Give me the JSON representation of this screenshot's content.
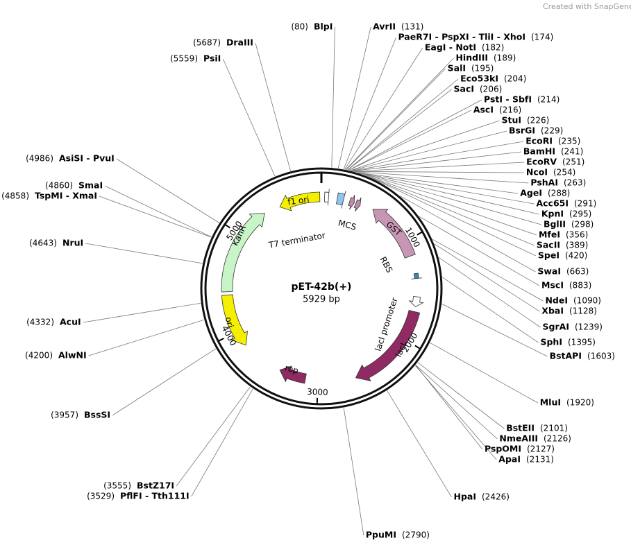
{
  "watermark": "Created with SnapGene®",
  "plasmid": {
    "name": "pET-42b(+)",
    "length": {
      "value": 5929,
      "label": "5929 bp"
    }
  },
  "ticks": [
    1000,
    2000,
    3000,
    4000,
    5000
  ],
  "features": [
    {
      "label": "f1 ori"
    },
    {
      "label": "T7 terminator"
    },
    {
      "label": "MCS"
    },
    {
      "label": "GST"
    },
    {
      "label": "RBS"
    },
    {
      "label": "lacI promoter"
    },
    {
      "label": "lacI"
    },
    {
      "label": "rop"
    },
    {
      "label": "ori"
    },
    {
      "label": "KanR"
    }
  ],
  "sites": [
    {
      "name": "BlpI",
      "position": {
        "value": 80,
        "label": "(80)"
      }
    },
    {
      "name": "AvrII",
      "position": {
        "value": 131,
        "label": "(131)"
      }
    },
    {
      "name": "PaeR7I - PspXI - TliI - XhoI",
      "position": {
        "value": 174,
        "label": "(174)"
      }
    },
    {
      "name": "EagI - NotI",
      "position": {
        "value": 182,
        "label": "(182)"
      }
    },
    {
      "name": "HindIII",
      "position": {
        "value": 189,
        "label": "(189)"
      }
    },
    {
      "name": "SalI",
      "position": {
        "value": 195,
        "label": "(195)"
      }
    },
    {
      "name": "Eco53kI",
      "position": {
        "value": 204,
        "label": "(204)"
      }
    },
    {
      "name": "SacI",
      "position": {
        "value": 206,
        "label": "(206)"
      }
    },
    {
      "name": "PstI - SbfI",
      "position": {
        "value": 214,
        "label": "(214)"
      }
    },
    {
      "name": "AscI",
      "position": {
        "value": 216,
        "label": "(216)"
      }
    },
    {
      "name": "StuI",
      "position": {
        "value": 226,
        "label": "(226)"
      }
    },
    {
      "name": "BsrGI",
      "position": {
        "value": 229,
        "label": "(229)"
      }
    },
    {
      "name": "EcoRI",
      "position": {
        "value": 235,
        "label": "(235)"
      }
    },
    {
      "name": "BamHI",
      "position": {
        "value": 241,
        "label": "(241)"
      }
    },
    {
      "name": "EcoRV",
      "position": {
        "value": 251,
        "label": "(251)"
      }
    },
    {
      "name": "NcoI",
      "position": {
        "value": 254,
        "label": "(254)"
      }
    },
    {
      "name": "PshAI",
      "position": {
        "value": 263,
        "label": "(263)"
      }
    },
    {
      "name": "AgeI",
      "position": {
        "value": 288,
        "label": "(288)"
      }
    },
    {
      "name": "Acc65I",
      "position": {
        "value": 291,
        "label": "(291)"
      }
    },
    {
      "name": "KpnI",
      "position": {
        "value": 295,
        "label": "(295)"
      }
    },
    {
      "name": "BglII",
      "position": {
        "value": 298,
        "label": "(298)"
      }
    },
    {
      "name": "MfeI",
      "position": {
        "value": 356,
        "label": "(356)"
      }
    },
    {
      "name": "SacII",
      "position": {
        "value": 389,
        "label": "(389)"
      }
    },
    {
      "name": "SpeI",
      "position": {
        "value": 420,
        "label": "(420)"
      }
    },
    {
      "name": "SwaI",
      "position": {
        "value": 663,
        "label": "(663)"
      }
    },
    {
      "name": "MscI",
      "position": {
        "value": 883,
        "label": "(883)"
      }
    },
    {
      "name": "NdeI",
      "position": {
        "value": 1090,
        "label": "(1090)"
      }
    },
    {
      "name": "XbaI",
      "position": {
        "value": 1128,
        "label": "(1128)"
      }
    },
    {
      "name": "SgrAI",
      "position": {
        "value": 1239,
        "label": "(1239)"
      }
    },
    {
      "name": "SphI",
      "position": {
        "value": 1395,
        "label": "(1395)"
      }
    },
    {
      "name": "BstAPI",
      "position": {
        "value": 1603,
        "label": "(1603)"
      }
    },
    {
      "name": "MluI",
      "position": {
        "value": 1920,
        "label": "(1920)"
      }
    },
    {
      "name": "BstEII",
      "position": {
        "value": 2101,
        "label": "(2101)"
      }
    },
    {
      "name": "NmeAIII",
      "position": {
        "value": 2126,
        "label": "(2126)"
      }
    },
    {
      "name": "PspOMI",
      "position": {
        "value": 2127,
        "label": "(2127)"
      }
    },
    {
      "name": "ApaI",
      "position": {
        "value": 2131,
        "label": "(2131)"
      }
    },
    {
      "name": "HpaI",
      "position": {
        "value": 2426,
        "label": "(2426)"
      }
    },
    {
      "name": "PpuMI",
      "position": {
        "value": 2790,
        "label": "(2790)"
      }
    },
    {
      "name": "PflFI - Tth111I",
      "position": {
        "value": 3529,
        "label": "(3529)"
      }
    },
    {
      "name": "BstZ17I",
      "position": {
        "value": 3555,
        "label": "(3555)"
      }
    },
    {
      "name": "BssSI",
      "position": {
        "value": 3957,
        "label": "(3957)"
      }
    },
    {
      "name": "AlwNI",
      "position": {
        "value": 4200,
        "label": "(4200)"
      }
    },
    {
      "name": "AcuI",
      "position": {
        "value": 4332,
        "label": "(4332)"
      }
    },
    {
      "name": "NruI",
      "position": {
        "value": 4643,
        "label": "(4643)"
      }
    },
    {
      "name": "TspMI - XmaI",
      "position": {
        "value": 4858,
        "label": "(4858)"
      }
    },
    {
      "name": "SmaI",
      "position": {
        "value": 4860,
        "label": "(4860)"
      }
    },
    {
      "name": "AsiSI - PvuI",
      "position": {
        "value": 4986,
        "label": "(4986)"
      }
    },
    {
      "name": "PsiI",
      "position": {
        "value": 5559,
        "label": "(5559)"
      }
    },
    {
      "name": "DraIII",
      "position": {
        "value": 5687,
        "label": "(5687)"
      }
    }
  ]
}
